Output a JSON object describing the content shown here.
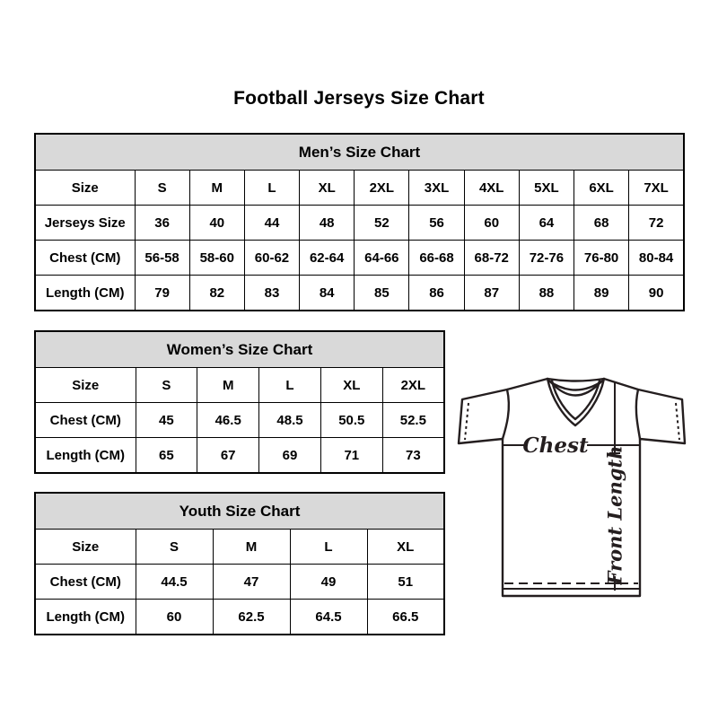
{
  "page_title": "Football Jerseys Size Chart",
  "colors": {
    "table_header_bg": "#d9d9d9",
    "table_border": "#000000",
    "diagram_line": "#241e1f",
    "background": "#ffffff"
  },
  "tables": [
    {
      "title": "Men’s Size Chart",
      "rows": [
        [
          "Size",
          "S",
          "M",
          "L",
          "XL",
          "2XL",
          "3XL",
          "4XL",
          "5XL",
          "6XL",
          "7XL"
        ],
        [
          "Jerseys Size",
          "36",
          "40",
          "44",
          "48",
          "52",
          "56",
          "60",
          "64",
          "68",
          "72"
        ],
        [
          "Chest (CM)",
          "56-58",
          "58-60",
          "60-62",
          "62-64",
          "64-66",
          "66-68",
          "68-72",
          "72-76",
          "76-80",
          "80-84"
        ],
        [
          "Length (CM)",
          "79",
          "82",
          "83",
          "84",
          "85",
          "86",
          "87",
          "88",
          "89",
          "90"
        ]
      ]
    },
    {
      "title": "Women’s Size Chart",
      "rows": [
        [
          "Size",
          "S",
          "M",
          "L",
          "XL",
          "2XL"
        ],
        [
          "Chest (CM)",
          "45",
          "46.5",
          "48.5",
          "50.5",
          "52.5"
        ],
        [
          "Length (CM)",
          "65",
          "67",
          "69",
          "71",
          "73"
        ]
      ]
    },
    {
      "title": "Youth Size Chart",
      "rows": [
        [
          "Size",
          "S",
          "M",
          "L",
          "XL"
        ],
        [
          "Chest (CM)",
          "44.5",
          "47",
          "49",
          "51"
        ],
        [
          "Length (CM)",
          "60",
          "62.5",
          "64.5",
          "66.5"
        ]
      ]
    }
  ],
  "diagram": {
    "chest_label": "Chest",
    "front_length_label": "Front Length"
  }
}
